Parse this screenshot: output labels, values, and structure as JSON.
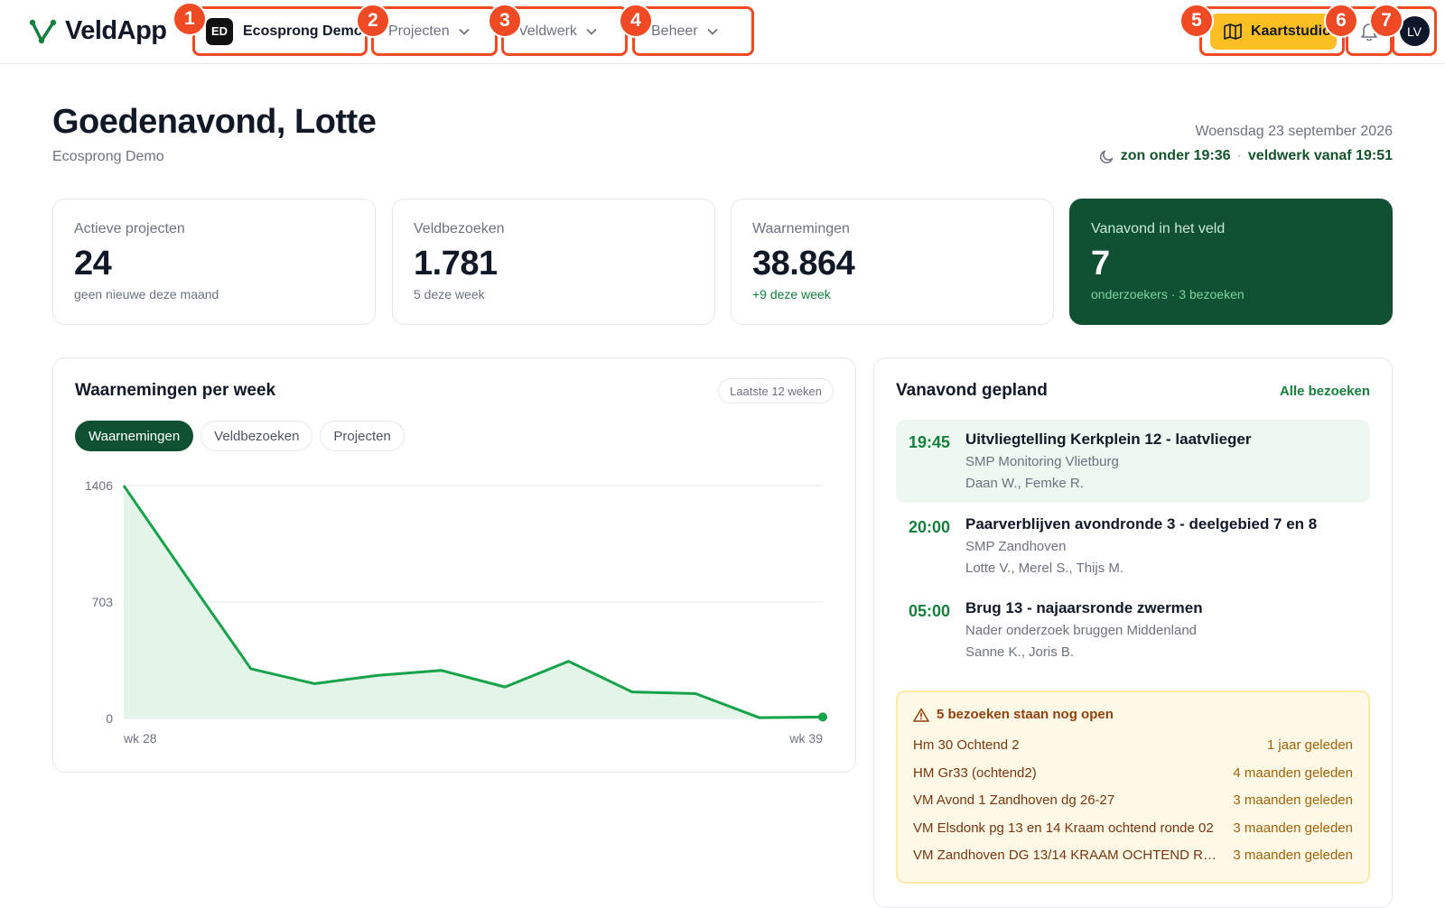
{
  "nav": {
    "app_name": "VeldApp",
    "workspace": {
      "badge": "ED",
      "name": "Ecosprong Demo"
    },
    "menus": [
      "Projecten",
      "Veldwerk",
      "Beheer"
    ],
    "map_button": "Kaartstudio",
    "user_initials": "LV",
    "markers": [
      "1",
      "2",
      "3",
      "4",
      "5",
      "6",
      "7"
    ],
    "accent": "#ef4a23"
  },
  "header": {
    "greeting": "Goedenavond, Lotte",
    "organization": "Ecosprong Demo",
    "date": "Woensdag 23 september 2026",
    "sunset": "zon onder 19:36",
    "fieldwork_from": "veldwerk vanaf 19:51",
    "separator": "·"
  },
  "stats": [
    {
      "label": "Actieve projecten",
      "value": "24",
      "sub": "geen nieuwe deze maand"
    },
    {
      "label": "Veldbezoeken",
      "value": "1.781",
      "sub": "5 deze week"
    },
    {
      "label": "Waarnemingen",
      "value": "38.864",
      "sub": "+9 deze week"
    },
    {
      "label": "Vanavond in het veld",
      "value": "7",
      "sub": "onderzoekers · 3 bezoeken"
    }
  ],
  "chart_panel": {
    "title": "Waarnemingen per week",
    "range": "Laatste 12 weken",
    "tabs": [
      "Waarnemingen",
      "Veldbezoeken",
      "Projecten"
    ],
    "active_tab": "Waarnemingen"
  },
  "chart_data": {
    "type": "area",
    "title": "Waarnemingen per week",
    "x": [
      "wk 28",
      "wk 29",
      "wk 30",
      "wk 31",
      "wk 32",
      "wk 33",
      "wk 34",
      "wk 35",
      "wk 36",
      "wk 37",
      "wk 38",
      "wk 39"
    ],
    "x_tick_labels": [
      "wk 28",
      "wk 39"
    ],
    "values": [
      1406,
      850,
      300,
      210,
      260,
      290,
      190,
      345,
      160,
      150,
      5,
      9
    ],
    "y_ticks": [
      "0",
      "703",
      "1406"
    ],
    "ylim": [
      0,
      1406
    ],
    "grid": true,
    "color": "#16a34a",
    "fill": "#e3f4e8"
  },
  "schedule": {
    "title": "Vanavond gepland",
    "all_link": "Alle bezoeken",
    "visits": [
      {
        "time": "19:45",
        "title": "Uitvliegtelling Kerkplein 12 - laatvlieger",
        "project": "SMP Monitoring Vlietburg",
        "people": "Daan W., Femke R."
      },
      {
        "time": "20:00",
        "title": "Paarverblijven avondronde 3 - deelgebied 7 en 8",
        "project": "SMP Zandhoven",
        "people": "Lotte V., Merel S., Thijs M."
      },
      {
        "time": "05:00",
        "title": "Brug 13 - najaarsronde zwermen",
        "project": "Nader onderzoek bruggen Middenland",
        "people": "Sanne K., Joris B."
      }
    ],
    "open_visits": {
      "title": "5 bezoeken staan nog open",
      "items": [
        {
          "name": "Hm 30 Ochtend 2",
          "age": "1 jaar geleden"
        },
        {
          "name": "HM Gr33 (ochtend2)",
          "age": "4 maanden geleden"
        },
        {
          "name": "VM Avond 1 Zandhoven dg 26-27",
          "age": "3 maanden geleden"
        },
        {
          "name": "VM Elsdonk pg 13 en 14 Kraam ochtend ronde 02",
          "age": "3 maanden geleden"
        },
        {
          "name": "VM Zandhoven DG 13/14 KRAAM OCHTEND RO...",
          "age": "3 maanden geleden"
        }
      ]
    }
  }
}
